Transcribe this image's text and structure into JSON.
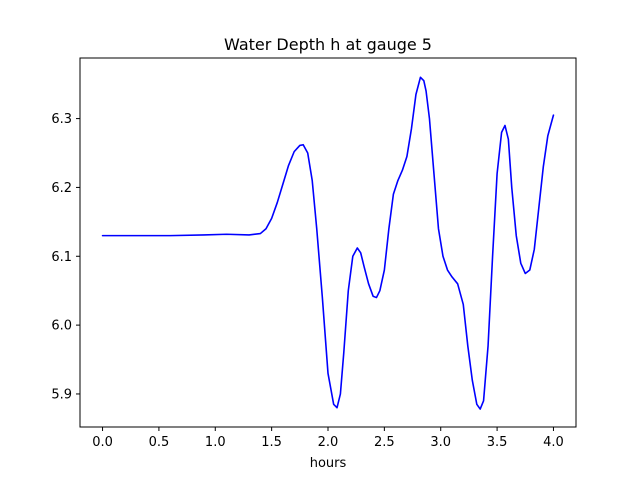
{
  "chart_data": {
    "type": "line",
    "title": "Water Depth h at gauge 5",
    "xlabel": "hours",
    "ylabel": "",
    "xlim": [
      -0.2,
      4.2
    ],
    "ylim": [
      5.852,
      6.388
    ],
    "xticks": [
      0.0,
      0.5,
      1.0,
      1.5,
      2.0,
      2.5,
      3.0,
      3.5,
      4.0
    ],
    "xtick_labels": [
      "0.0",
      "0.5",
      "1.0",
      "1.5",
      "2.0",
      "2.5",
      "3.0",
      "3.5",
      "4.0"
    ],
    "yticks": [
      5.9,
      6.0,
      6.1,
      6.2,
      6.3
    ],
    "ytick_labels": [
      "5.9",
      "6.0",
      "6.1",
      "6.2",
      "6.3"
    ],
    "grid": false,
    "series": [
      {
        "name": "",
        "color": "#0000ff",
        "x": [
          0.0,
          0.3,
          0.6,
          0.9,
          1.1,
          1.3,
          1.4,
          1.45,
          1.5,
          1.55,
          1.6,
          1.65,
          1.7,
          1.75,
          1.78,
          1.82,
          1.86,
          1.9,
          1.95,
          2.0,
          2.05,
          2.08,
          2.11,
          2.14,
          2.18,
          2.22,
          2.26,
          2.29,
          2.32,
          2.36,
          2.4,
          2.43,
          2.46,
          2.5,
          2.54,
          2.58,
          2.62,
          2.66,
          2.7,
          2.74,
          2.78,
          2.82,
          2.85,
          2.87,
          2.9,
          2.94,
          2.98,
          3.02,
          3.06,
          3.1,
          3.15,
          3.2,
          3.24,
          3.28,
          3.32,
          3.35,
          3.38,
          3.42,
          3.46,
          3.5,
          3.54,
          3.57,
          3.6,
          3.63,
          3.67,
          3.71,
          3.75,
          3.79,
          3.83,
          3.87,
          3.91,
          3.95,
          4.0
        ],
        "y": [
          6.13,
          6.13,
          6.13,
          6.131,
          6.132,
          6.131,
          6.133,
          6.14,
          6.155,
          6.178,
          6.205,
          6.232,
          6.252,
          6.261,
          6.262,
          6.25,
          6.21,
          6.14,
          6.04,
          5.93,
          5.885,
          5.88,
          5.9,
          5.96,
          6.05,
          6.1,
          6.112,
          6.105,
          6.085,
          6.06,
          6.042,
          6.04,
          6.05,
          6.08,
          6.14,
          6.19,
          6.21,
          6.225,
          6.245,
          6.285,
          6.335,
          6.36,
          6.355,
          6.34,
          6.3,
          6.22,
          6.14,
          6.1,
          6.08,
          6.07,
          6.06,
          6.03,
          5.97,
          5.92,
          5.885,
          5.878,
          5.89,
          5.97,
          6.1,
          6.22,
          6.28,
          6.29,
          6.27,
          6.2,
          6.13,
          6.09,
          6.075,
          6.08,
          6.11,
          6.17,
          6.23,
          6.275,
          6.305
        ]
      }
    ]
  }
}
